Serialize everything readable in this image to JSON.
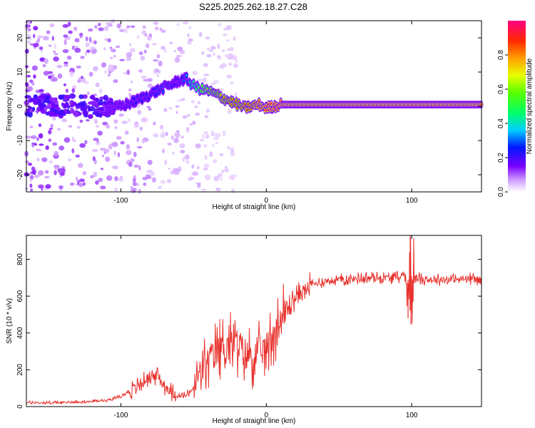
{
  "title": "S225.2025.262.18.27.C28",
  "chart_data": [
    {
      "type": "heatmap",
      "xlabel": "Height of straight line (km)",
      "ylabel": "Frequency (Hz)",
      "xlim": [
        -165,
        148
      ],
      "ylim": [
        -25,
        25
      ],
      "xticks": [
        -100,
        0,
        100
      ],
      "yticks": [
        -20,
        -10,
        0,
        10,
        20
      ],
      "ridge": {
        "x": [
          -110,
          -100,
          -90,
          -80,
          -70,
          -60,
          -55,
          -50,
          -45,
          -40,
          -35,
          -30,
          -25,
          -20,
          -15,
          -10,
          -5,
          0,
          5,
          10,
          20,
          40,
          60,
          80,
          92,
          100,
          120,
          148
        ],
        "freq": [
          -1,
          0,
          1.5,
          3.5,
          5.5,
          7.5,
          8,
          6,
          5,
          4.5,
          3.5,
          2.5,
          1.5,
          0.5,
          -0.5,
          0,
          0.5,
          -0.5,
          0,
          0.5,
          0.5,
          0.5,
          0.5,
          0.5,
          0.5,
          0.5,
          0.5,
          0.5
        ],
        "amplitude": [
          0.2,
          0.2,
          0.25,
          0.25,
          0.3,
          0.2,
          0.35,
          0.5,
          0.6,
          0.7,
          0.75,
          0.8,
          0.85,
          0.85,
          0.9,
          0.9,
          0.95,
          0.95,
          1.0,
          1.0,
          1.0,
          1.0,
          1.0,
          1.0,
          1.0,
          1.0,
          1.0,
          1.0
        ]
      },
      "colorbar": {
        "label": "Normalized spectral amplitude",
        "range": [
          0,
          1
        ],
        "ticks": [
          "0.0",
          "0.2",
          "0.4",
          "0.6",
          "0.8"
        ],
        "tick_values": [
          0,
          0.2,
          0.4,
          0.6,
          0.8
        ]
      }
    },
    {
      "type": "line",
      "xlabel": "Height of straight line (km)",
      "ylabel": "SNR (10 * v/v)",
      "xlim": [
        -165,
        148
      ],
      "ylim": [
        0,
        930
      ],
      "xticks": [
        -100,
        0,
        100
      ],
      "yticks": [
        0,
        200,
        400,
        600,
        800
      ],
      "color": "#e8312c",
      "series": [
        {
          "name": "SNR",
          "x": [
            -165,
            -150,
            -140,
            -130,
            -120,
            -110,
            -100,
            -95,
            -90,
            -85,
            -80,
            -75,
            -70,
            -65,
            -60,
            -55,
            -50,
            -45,
            -40,
            -35,
            -30,
            -25,
            -20,
            -15,
            -10,
            -5,
            0,
            5,
            10,
            15,
            20,
            25,
            30,
            40,
            50,
            60,
            70,
            80,
            90,
            95,
            98,
            100,
            102,
            105,
            110,
            120,
            130,
            140,
            148
          ],
          "y": [
            22,
            20,
            22,
            25,
            28,
            35,
            55,
            80,
            100,
            130,
            170,
            165,
            115,
            75,
            55,
            60,
            100,
            190,
            250,
            290,
            330,
            345,
            330,
            300,
            270,
            290,
            320,
            400,
            470,
            540,
            590,
            630,
            660,
            680,
            690,
            695,
            700,
            700,
            700,
            720,
            660,
            690,
            700,
            695,
            690,
            690,
            690,
            695,
            690
          ],
          "spikes": [
            {
              "x": 99,
              "y": 940
            },
            {
              "x": 98.5,
              "y": 820
            },
            {
              "x": 99.5,
              "y": 445
            },
            {
              "x": 97.5,
              "y": 480
            }
          ]
        }
      ]
    }
  ]
}
